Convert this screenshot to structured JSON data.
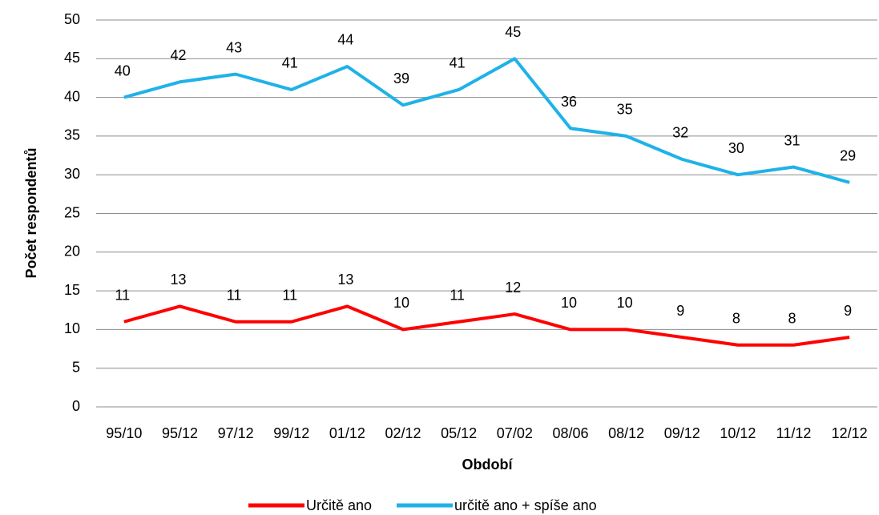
{
  "chart_data": {
    "type": "line",
    "categories": [
      "95/10",
      "95/12",
      "97/12",
      "99/12",
      "01/12",
      "02/12",
      "05/12",
      "07/02",
      "08/06",
      "08/12",
      "09/12",
      "10/12",
      "11/12",
      "12/12"
    ],
    "series": [
      {
        "name": "Určitě ano",
        "color": "#ff0000",
        "values": [
          11,
          13,
          11,
          11,
          13,
          10,
          11,
          12,
          10,
          10,
          9,
          8,
          8,
          9
        ]
      },
      {
        "name": "určitě ano + spíše ano",
        "color": "#1fb2e8",
        "values": [
          40,
          42,
          43,
          41,
          44,
          39,
          41,
          45,
          36,
          35,
          32,
          30,
          31,
          29
        ]
      }
    ],
    "ylim": [
      0,
      50
    ],
    "yticks": [
      0,
      5,
      10,
      15,
      20,
      25,
      30,
      35,
      40,
      45,
      50
    ],
    "grid": true,
    "ylabel": "Počet respondentů",
    "xlabel": "Období",
    "legend": "bottom"
  }
}
